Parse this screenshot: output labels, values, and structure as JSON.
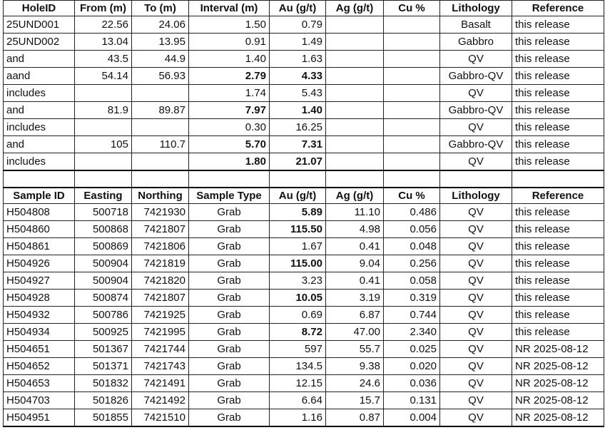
{
  "drill_table": {
    "headers": [
      "HoleID",
      "From (m)",
      "To (m)",
      "Interval (m)",
      "Au (g/t)",
      "Ag (g/t)",
      "Cu %",
      "Lithology",
      "Reference"
    ],
    "rows": [
      {
        "cells": [
          "25UND001",
          "22.56",
          "24.06",
          "1.50",
          "0.79",
          "",
          "",
          "Basalt",
          "this release"
        ],
        "bold": []
      },
      {
        "cells": [
          "25UND002",
          "13.04",
          "13.95",
          "0.91",
          "1.49",
          "",
          "",
          "Gabbro",
          "this release"
        ],
        "bold": []
      },
      {
        "cells": [
          "and",
          "43.5",
          "44.9",
          "1.40",
          "1.63",
          "",
          "",
          "QV",
          "this release"
        ],
        "bold": []
      },
      {
        "cells": [
          "aand",
          "54.14",
          "56.93",
          "2.79",
          "4.33",
          "",
          "",
          "Gabbro-QV",
          "this release"
        ],
        "bold": [
          3,
          4
        ]
      },
      {
        "cells": [
          "includes",
          "",
          "",
          "1.74",
          "5.43",
          "",
          "",
          "QV",
          "this release"
        ],
        "bold": []
      },
      {
        "cells": [
          "and",
          "81.9",
          "89.87",
          "7.97",
          "1.40",
          "",
          "",
          "Gabbro-QV",
          "this release"
        ],
        "bold": [
          3,
          4
        ]
      },
      {
        "cells": [
          "includes",
          "",
          "",
          "0.30",
          "16.25",
          "",
          "",
          "QV",
          "this release"
        ],
        "bold": []
      },
      {
        "cells": [
          "and",
          "105",
          "110.7",
          "5.70",
          "7.31",
          "",
          "",
          "Gabbro-QV",
          "this release"
        ],
        "bold": [
          3,
          4
        ]
      },
      {
        "cells": [
          "includes",
          "",
          "",
          "1.80",
          "21.07",
          "",
          "",
          "QV",
          "this release"
        ],
        "bold": [
          3,
          4
        ]
      }
    ]
  },
  "sample_table": {
    "headers": [
      "Sample ID",
      "Easting",
      "Northing",
      "Sample Type",
      "Au (g/t)",
      "Ag (g/t)",
      "Cu %",
      "Lithology",
      "Reference"
    ],
    "rows": [
      {
        "cells": [
          "H504808",
          "500718",
          "7421930",
          "Grab",
          "5.89",
          "11.10",
          "0.486",
          "QV",
          "this release"
        ],
        "bold": [
          4
        ]
      },
      {
        "cells": [
          "H504860",
          "500868",
          "7421807",
          "Grab",
          "115.50",
          "4.98",
          "0.056",
          "QV",
          "this release"
        ],
        "bold": [
          4
        ]
      },
      {
        "cells": [
          "H504861",
          "500869",
          "7421806",
          "Grab",
          "1.67",
          "0.41",
          "0.048",
          "QV",
          "this release"
        ],
        "bold": []
      },
      {
        "cells": [
          "H504926",
          "500904",
          "7421819",
          "Grab",
          "115.00",
          "9.04",
          "0.256",
          "QV",
          "this release"
        ],
        "bold": [
          4
        ]
      },
      {
        "cells": [
          "H504927",
          "500904",
          "7421820",
          "Grab",
          "3.23",
          "0.41",
          "0.058",
          "QV",
          "this release"
        ],
        "bold": []
      },
      {
        "cells": [
          "H504928",
          "500874",
          "7421807",
          "Grab",
          "10.05",
          "3.19",
          "0.319",
          "QV",
          "this release"
        ],
        "bold": [
          4
        ]
      },
      {
        "cells": [
          "H504932",
          "500786",
          "7421925",
          "Grab",
          "0.69",
          "6.87",
          "0.744",
          "QV",
          "this release"
        ],
        "bold": []
      },
      {
        "cells": [
          "H504934",
          "500925",
          "7421995",
          "Grab",
          "8.72",
          "47.00",
          "2.340",
          "QV",
          "this release"
        ],
        "bold": [
          4
        ]
      },
      {
        "cells": [
          "H504651",
          "501367",
          "7421744",
          "Grab",
          "597",
          "55.7",
          "0.025",
          "QV",
          "NR 2025-08-12"
        ],
        "bold": []
      },
      {
        "cells": [
          "H504652",
          "501371",
          "7421743",
          "Grab",
          "134.5",
          "9.38",
          "0.020",
          "QV",
          "NR 2025-08-12"
        ],
        "bold": []
      },
      {
        "cells": [
          "H504653",
          "501832",
          "7421491",
          "Grab",
          "12.15",
          "24.6",
          "0.036",
          "QV",
          "NR 2025-08-12"
        ],
        "bold": []
      },
      {
        "cells": [
          "H504703",
          "501826",
          "7421492",
          "Grab",
          "6.64",
          "15.7",
          "0.131",
          "QV",
          "NR 2025-08-12"
        ],
        "bold": []
      },
      {
        "cells": [
          "H504951",
          "501855",
          "7421510",
          "Grab",
          "1.16",
          "0.87",
          "0.004",
          "QV",
          "NR 2025-08-12"
        ],
        "bold": []
      }
    ]
  }
}
